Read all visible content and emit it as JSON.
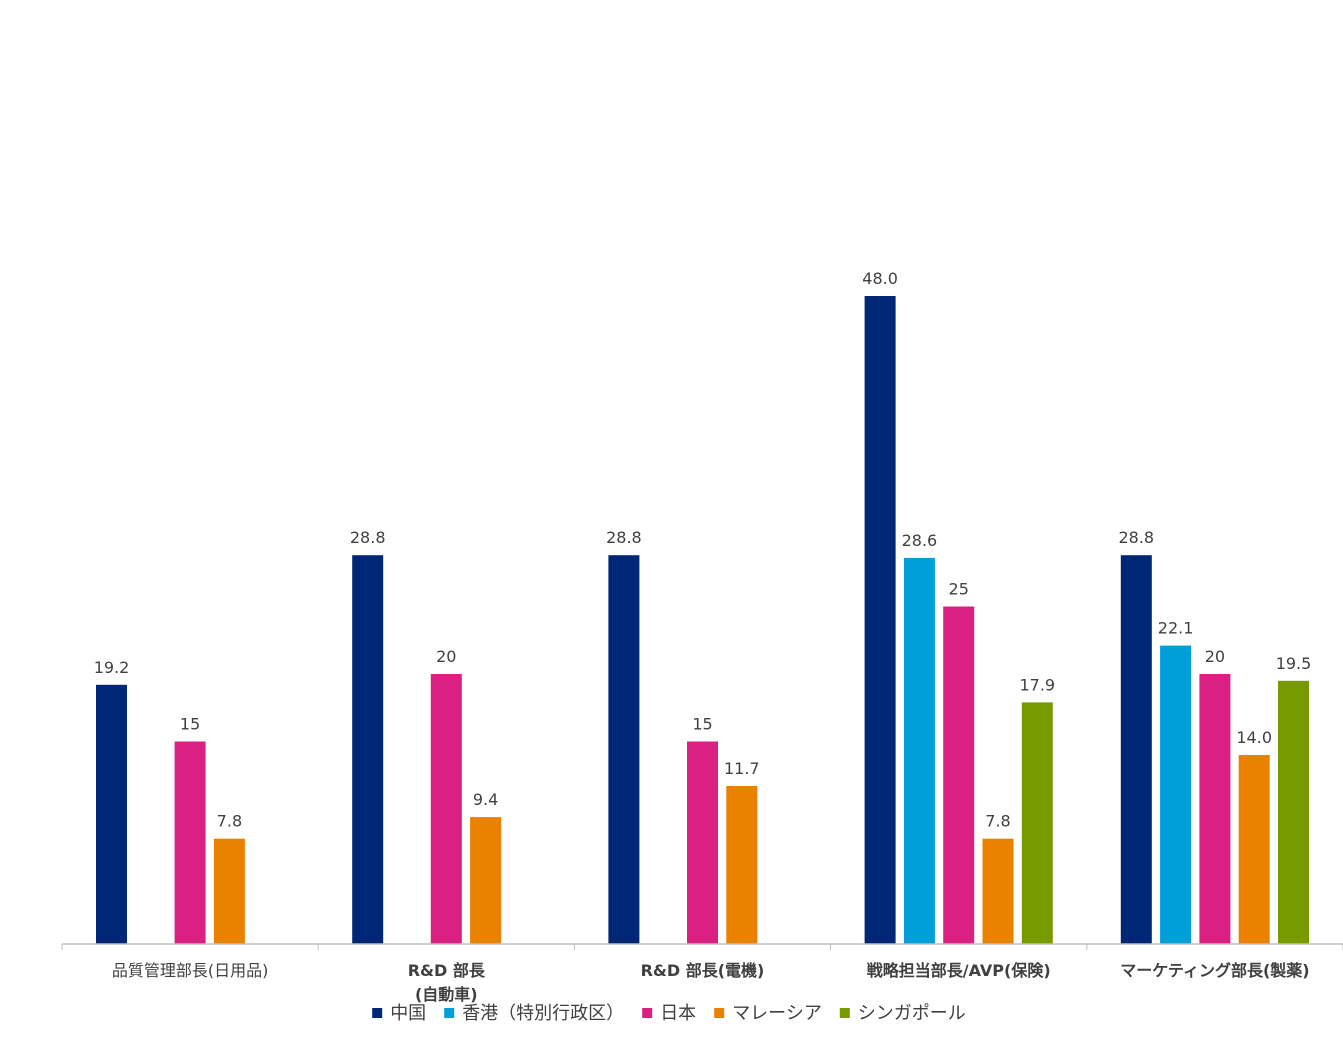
{
  "chart_data": {
    "type": "bar",
    "title": "",
    "xlabel": "",
    "ylabel": "",
    "ylim": [
      0,
      58
    ],
    "grid": false,
    "legend_position": "bottom",
    "categories": [
      {
        "lines": [
          "品質管理部長(日用品)"
        ],
        "bold": false
      },
      {
        "lines": [
          "R&D 部長",
          "(自動車)"
        ],
        "bold": true
      },
      {
        "lines": [
          "R&D 部長(電機)"
        ],
        "bold": true
      },
      {
        "lines": [
          "戦略担当部長/AVP(保険)"
        ],
        "bold": true
      },
      {
        "lines": [
          "マーケティング部長(製薬)"
        ],
        "bold": true
      }
    ],
    "series": [
      {
        "name": "中国",
        "color": "#002776",
        "values": [
          19.2,
          28.8,
          28.8,
          48.0,
          28.8
        ],
        "labels": [
          "19.2",
          "28.8",
          "28.8",
          "48.0",
          "28.8"
        ]
      },
      {
        "name": "香港（特別行政区）",
        "color": "#009fda",
        "values": [
          null,
          null,
          null,
          28.6,
          22.1
        ],
        "labels": [
          null,
          null,
          null,
          "28.6",
          "22.1"
        ]
      },
      {
        "name": "日本",
        "color": "#da2083",
        "values": [
          15,
          20,
          15,
          25,
          20
        ],
        "labels": [
          "15",
          "20",
          "15",
          "25",
          "20"
        ]
      },
      {
        "name": "マレーシア",
        "color": "#ea8200",
        "values": [
          7.8,
          9.4,
          11.7,
          7.8,
          14.0
        ],
        "labels": [
          "7.8",
          "9.4",
          "11.7",
          "7.8",
          "14.0"
        ]
      },
      {
        "name": "シンガポール",
        "color": "#769a00",
        "values": [
          null,
          null,
          null,
          17.9,
          19.5
        ],
        "labels": [
          null,
          null,
          null,
          "17.9",
          "19.5"
        ]
      }
    ]
  }
}
